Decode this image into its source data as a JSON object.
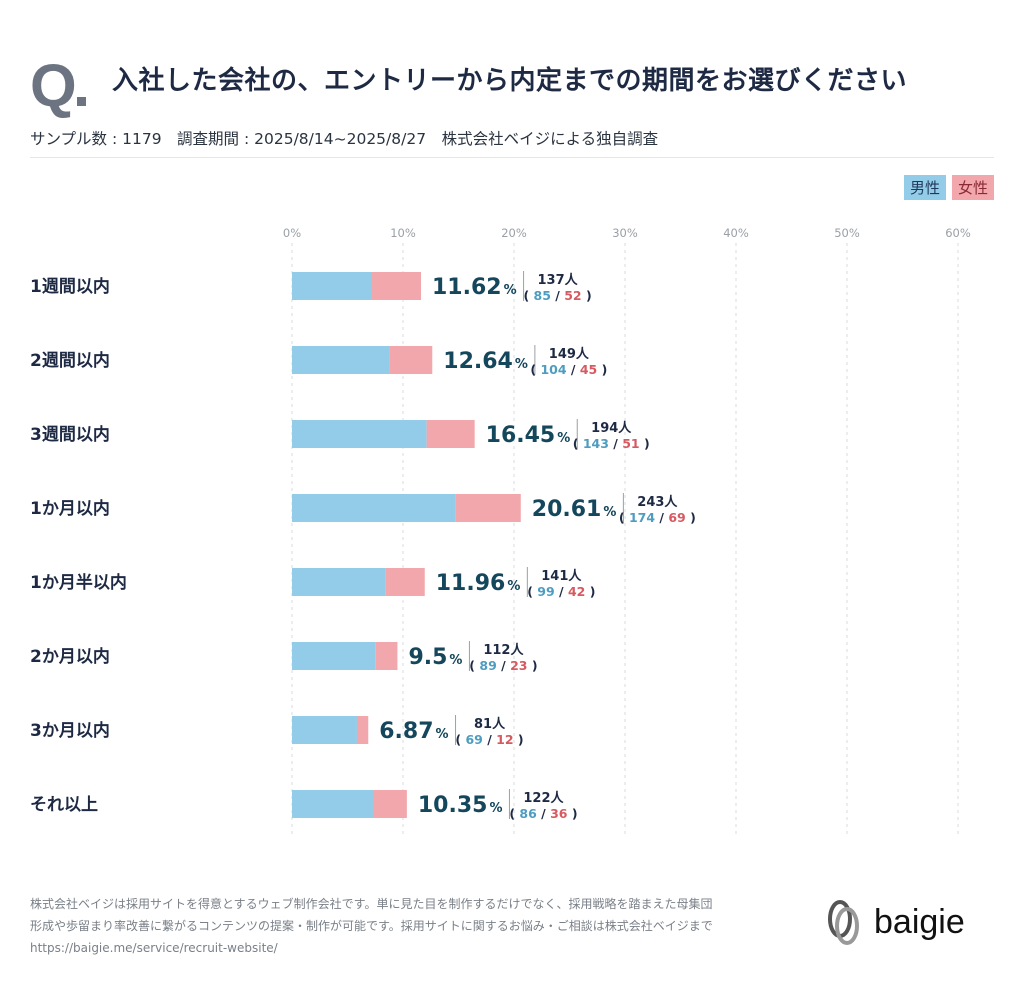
{
  "header": {
    "q_mark": "Q",
    "title": "入社した会社の、エントリーから内定までの期間をお選びください",
    "subtitle": "サンプル数 : 1179　調査期間 : 2025/8/14~2025/8/27　株式会社ベイジによる独自調査"
  },
  "colors": {
    "male": "#93cce8",
    "female": "#f1a7ab",
    "value_text": "#14465c",
    "male_text": "#4e9cc0",
    "female_text": "#d65a61"
  },
  "chart_data": {
    "type": "bar",
    "orientation": "horizontal",
    "stacked": true,
    "title": "入社した会社の、エントリーから内定までの期間をお選びください",
    "xlabel": "",
    "ylabel": "",
    "xlim": [
      0,
      60
    ],
    "x_ticks": [
      "0%",
      "10%",
      "20%",
      "30%",
      "40%",
      "50%",
      "60%"
    ],
    "grid": true,
    "legend": {
      "position": "top-right",
      "entries": [
        "男性",
        "女性"
      ]
    },
    "count_unit": "人",
    "categories": [
      "1週間以内",
      "2週間以内",
      "3週間以内",
      "1か月以内",
      "1か月半以内",
      "2か月以内",
      "3か月以内",
      "それ以上"
    ],
    "percent_labels": [
      "11.62",
      "12.64",
      "16.45",
      "20.61",
      "11.96",
      "9.5",
      "6.87",
      "10.35"
    ],
    "totals": [
      137,
      149,
      194,
      243,
      141,
      112,
      81,
      122
    ],
    "series": [
      {
        "name": "男性",
        "values": [
          85,
          104,
          143,
          174,
          99,
          89,
          69,
          86
        ]
      },
      {
        "name": "女性",
        "values": [
          52,
          45,
          51,
          69,
          42,
          23,
          12,
          36
        ]
      }
    ],
    "sample_size": 1179
  },
  "footer": {
    "line1": "株式会社ベイジは採用サイトを得意とするウェブ制作会社です。単に見た目を制作するだけでなく、採用戦略を踏まえた母集団",
    "line2": "形成や歩留まり率改善に繋がるコンテンツの提案・制作が可能です。採用サイトに関するお悩み・ご相談は株式会社ベイジまで",
    "url": "https://baigie.me/service/recruit-website/",
    "logo_text": "baigie"
  }
}
